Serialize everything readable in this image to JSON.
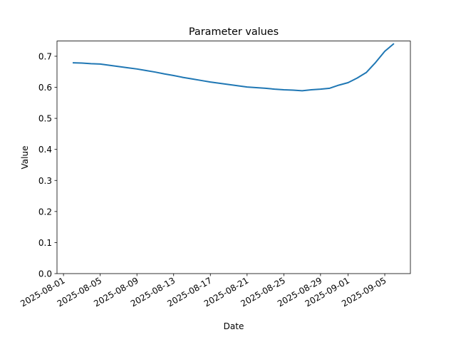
{
  "chart_data": {
    "type": "line",
    "title": "Parameter values",
    "x_label": "Date",
    "y_label": "Value",
    "x": [
      "2025-08-02",
      "2025-08-03",
      "2025-08-04",
      "2025-08-05",
      "2025-08-06",
      "2025-08-07",
      "2025-08-08",
      "2025-08-09",
      "2025-08-10",
      "2025-08-11",
      "2025-08-12",
      "2025-08-13",
      "2025-08-14",
      "2025-08-15",
      "2025-08-16",
      "2025-08-17",
      "2025-08-18",
      "2025-08-19",
      "2025-08-20",
      "2025-08-21",
      "2025-08-22",
      "2025-08-23",
      "2025-08-24",
      "2025-08-25",
      "2025-08-26",
      "2025-08-27",
      "2025-08-28",
      "2025-08-29",
      "2025-08-30",
      "2025-08-31",
      "2025-09-01",
      "2025-09-02",
      "2025-09-03",
      "2025-09-04",
      "2025-09-05",
      "2025-09-06"
    ],
    "series": [
      {
        "color": "#1f77b4",
        "values": [
          0.679,
          0.678,
          0.676,
          0.675,
          0.671,
          0.667,
          0.663,
          0.659,
          0.654,
          0.649,
          0.643,
          0.638,
          0.632,
          0.627,
          0.622,
          0.617,
          0.613,
          0.609,
          0.605,
          0.601,
          0.599,
          0.597,
          0.594,
          0.592,
          0.591,
          0.589,
          0.592,
          0.594,
          0.597,
          0.607,
          0.615,
          0.63,
          0.648,
          0.68,
          0.716,
          0.741
        ]
      }
    ],
    "xlim": [
      "2025-07-31T07:00",
      "2025-09-07T19:00"
    ],
    "xticks": [
      "2025-08-01",
      "2025-08-05",
      "2025-08-09",
      "2025-08-13",
      "2025-08-17",
      "2025-08-21",
      "2025-08-25",
      "2025-08-29",
      "2025-09-01",
      "2025-09-05"
    ],
    "ylim": [
      0,
      0.749
    ],
    "yticks": [
      {
        "value": 0,
        "label": "0.0"
      },
      0.1,
      0.2,
      0.3,
      0.4,
      0.5,
      0.6,
      0.7
    ],
    "grid": false
  }
}
